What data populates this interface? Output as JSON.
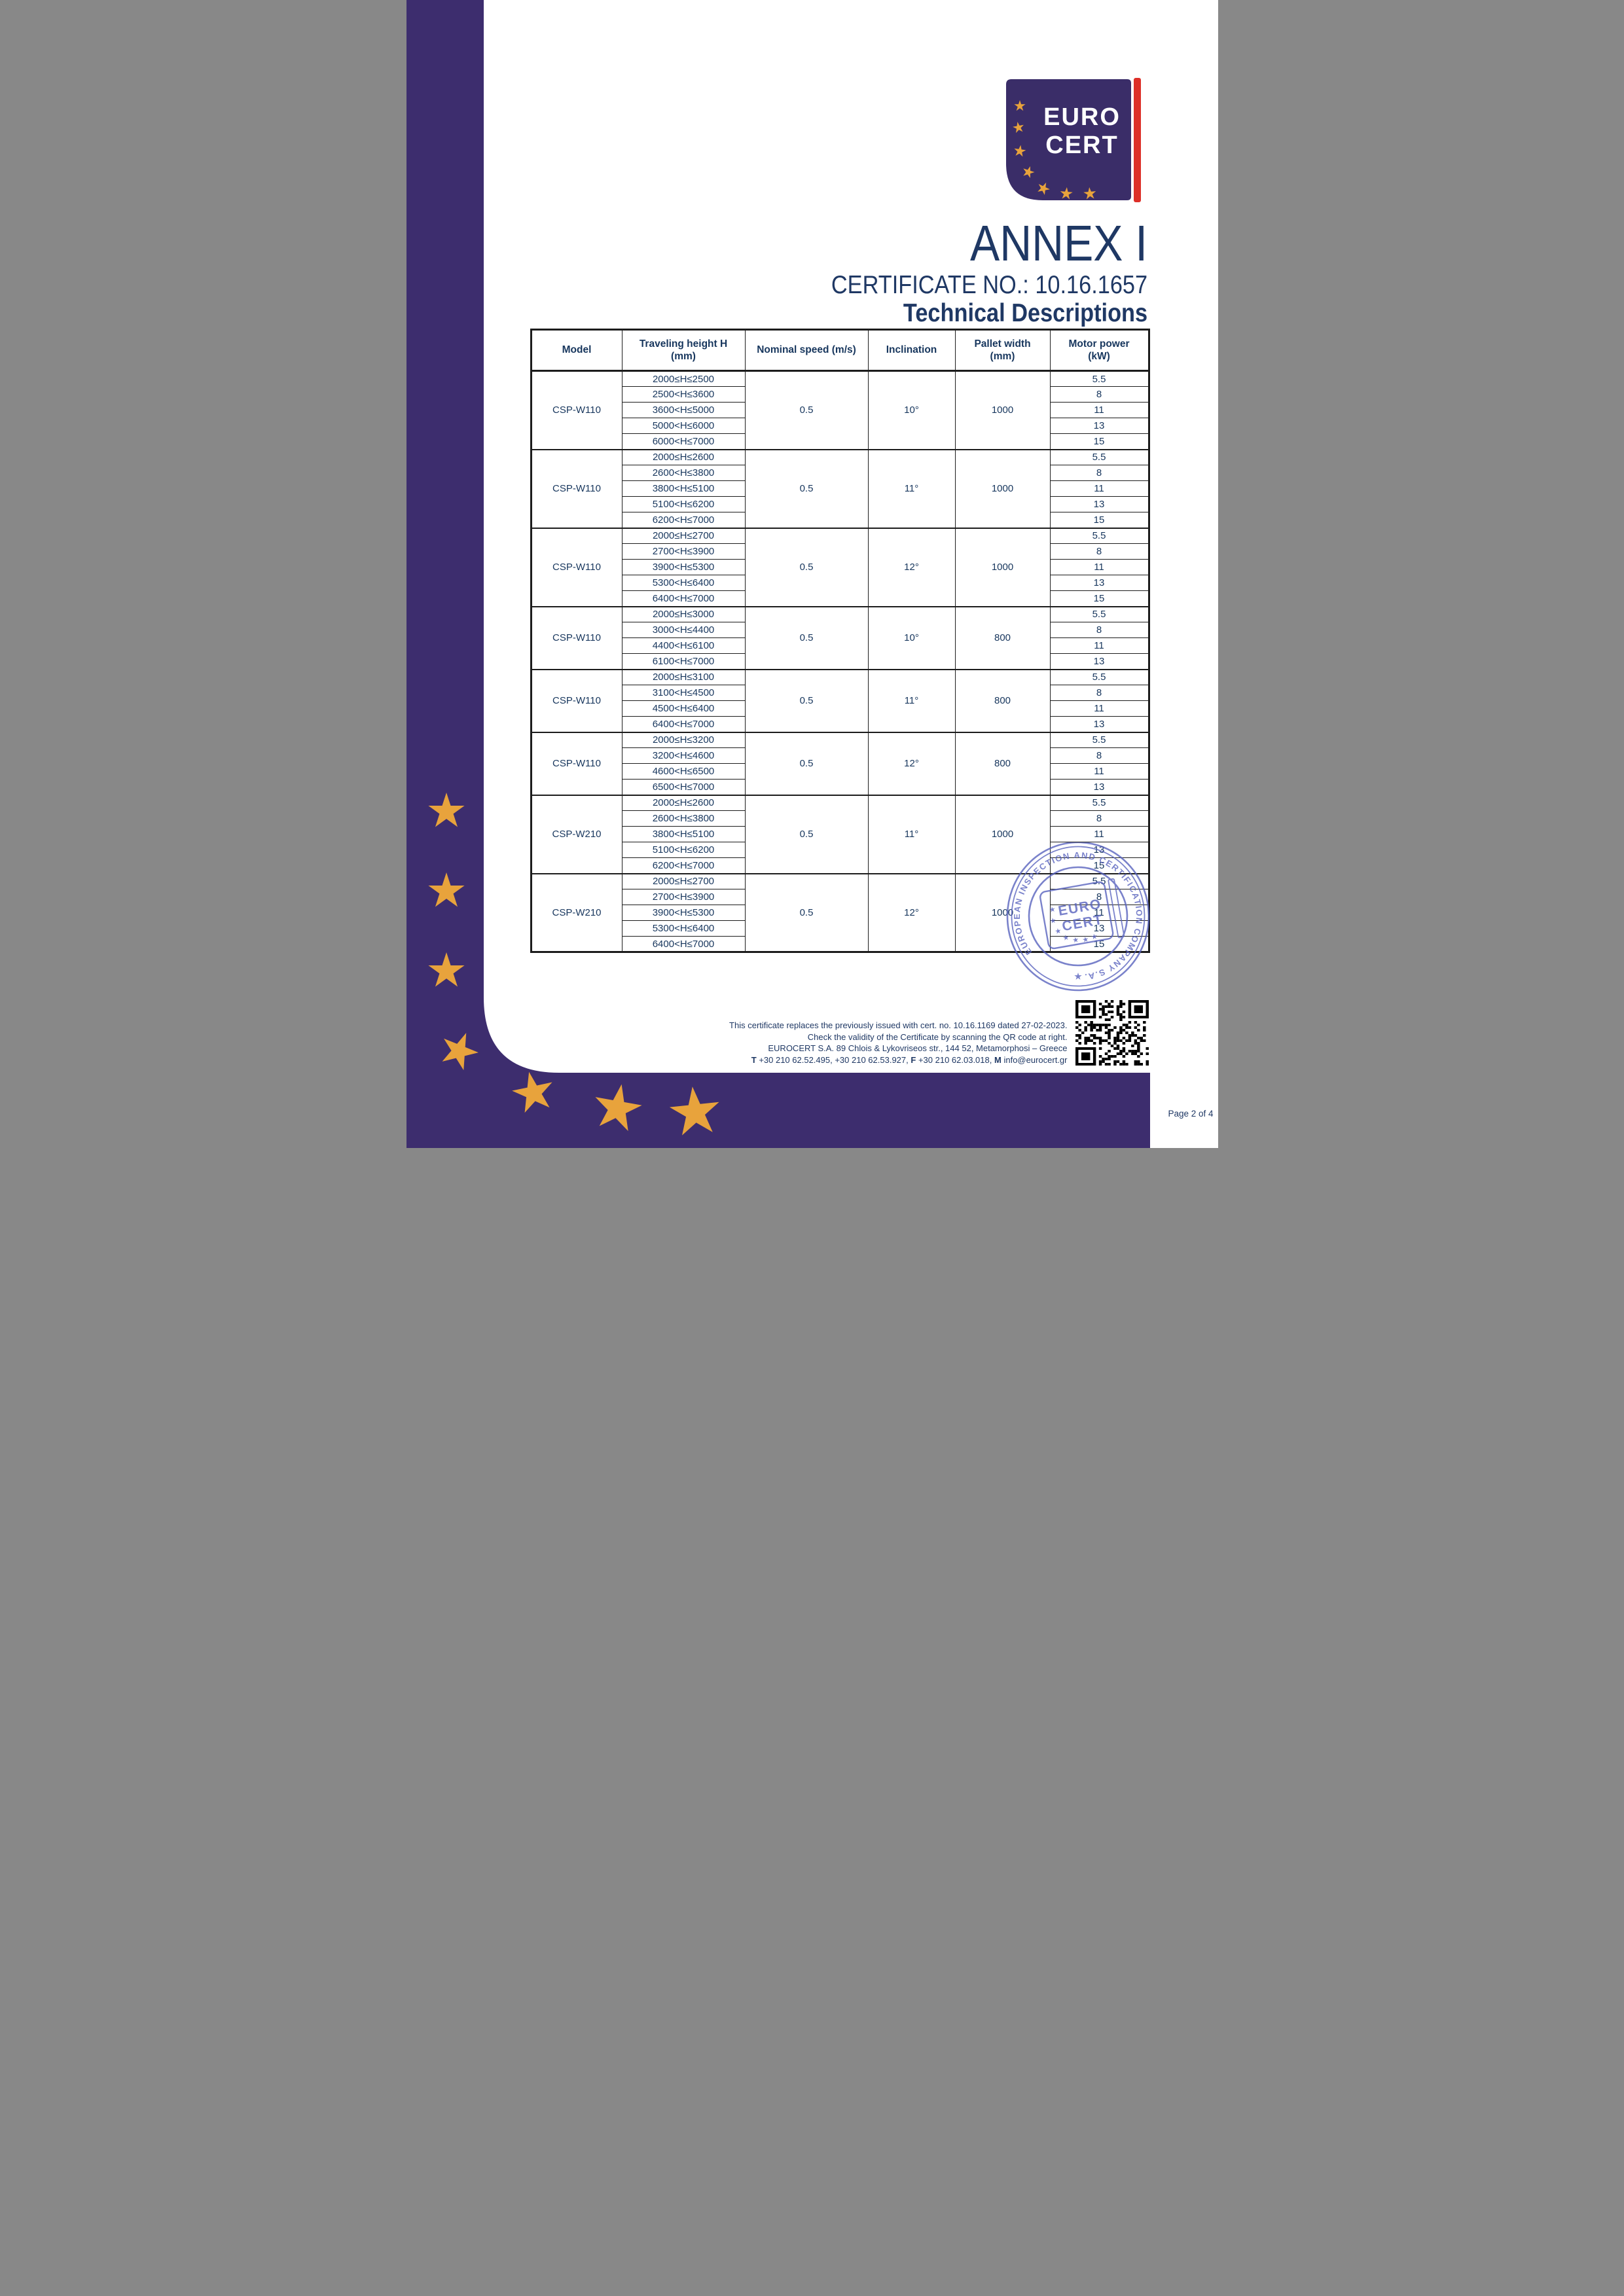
{
  "colors": {
    "purple": "#3d2d6e",
    "logo_purple": "#3a2d68",
    "gold": "#e8a33c",
    "navy": "#1f3864",
    "table_text": "#17365d",
    "stamp_blue": "#5560bd",
    "red": "#dd2f28",
    "border": "#1c1c1c"
  },
  "logo": {
    "word1": "EURO",
    "word2": "CERT"
  },
  "titles": {
    "annex": "ANNEX I",
    "certificate_no": "CERTIFICATE NO.: 10.16.1657",
    "subtitle": "Technical Descriptions"
  },
  "table": {
    "headers": [
      {
        "line1": "Model",
        "line2": ""
      },
      {
        "line1": "Traveling height H",
        "line2": "(mm)"
      },
      {
        "line1": "Nominal speed (m/s)",
        "line2": ""
      },
      {
        "line1": "Inclination",
        "line2": ""
      },
      {
        "line1": "Pallet width",
        "line2": "(mm)"
      },
      {
        "line1": "Motor power",
        "line2": "(kW)"
      }
    ],
    "groups": [
      {
        "model": "CSP-W110",
        "speed": "0.5",
        "inclination": "10°",
        "pallet": "1000",
        "rows": [
          [
            "2000≤H≤2500",
            "5.5"
          ],
          [
            "2500<H≤3600",
            "8"
          ],
          [
            "3600<H≤5000",
            "11"
          ],
          [
            "5000<H≤6000",
            "13"
          ],
          [
            "6000<H≤7000",
            "15"
          ]
        ]
      },
      {
        "model": "CSP-W110",
        "speed": "0.5",
        "inclination": "11°",
        "pallet": "1000",
        "rows": [
          [
            "2000≤H≤2600",
            "5.5"
          ],
          [
            "2600<H≤3800",
            "8"
          ],
          [
            "3800<H≤5100",
            "11"
          ],
          [
            "5100<H≤6200",
            "13"
          ],
          [
            "6200<H≤7000",
            "15"
          ]
        ]
      },
      {
        "model": "CSP-W110",
        "speed": "0.5",
        "inclination": "12°",
        "pallet": "1000",
        "rows": [
          [
            "2000≤H≤2700",
            "5.5"
          ],
          [
            "2700<H≤3900",
            "8"
          ],
          [
            "3900<H≤5300",
            "11"
          ],
          [
            "5300<H≤6400",
            "13"
          ],
          [
            "6400<H≤7000",
            "15"
          ]
        ]
      },
      {
        "model": "CSP-W110",
        "speed": "0.5",
        "inclination": "10°",
        "pallet": "800",
        "rows": [
          [
            "2000≤H≤3000",
            "5.5"
          ],
          [
            "3000<H≤4400",
            "8"
          ],
          [
            "4400<H≤6100",
            "11"
          ],
          [
            "6100<H≤7000",
            "13"
          ]
        ]
      },
      {
        "model": "CSP-W110",
        "speed": "0.5",
        "inclination": "11°",
        "pallet": "800",
        "rows": [
          [
            "2000≤H≤3100",
            "5.5"
          ],
          [
            "3100<H≤4500",
            "8"
          ],
          [
            "4500<H≤6400",
            "11"
          ],
          [
            "6400<H≤7000",
            "13"
          ]
        ]
      },
      {
        "model": "CSP-W110",
        "speed": "0.5",
        "inclination": "12°",
        "pallet": "800",
        "rows": [
          [
            "2000≤H≤3200",
            "5.5"
          ],
          [
            "3200<H≤4600",
            "8"
          ],
          [
            "4600<H≤6500",
            "11"
          ],
          [
            "6500<H≤7000",
            "13"
          ]
        ]
      },
      {
        "model": "CSP-W210",
        "speed": "0.5",
        "inclination": "11°",
        "pallet": "1000",
        "rows": [
          [
            "2000≤H≤2600",
            "5.5"
          ],
          [
            "2600<H≤3800",
            "8"
          ],
          [
            "3800<H≤5100",
            "11"
          ],
          [
            "5100<H≤6200",
            "13"
          ],
          [
            "6200<H≤7000",
            "15"
          ]
        ]
      },
      {
        "model": "CSP-W210",
        "speed": "0.5",
        "inclination": "12°",
        "pallet": "1000",
        "rows": [
          [
            "2000≤H≤2700",
            "5.5"
          ],
          [
            "2700<H≤3900",
            "8"
          ],
          [
            "3900<H≤5300",
            "11"
          ],
          [
            "5300<H≤6400",
            "13"
          ],
          [
            "6400<H≤7000",
            "15"
          ]
        ]
      }
    ]
  },
  "stamp": {
    "ring_text": "EUROPEAN INSPECTION AND CERTIFICATION COMPANY S.A.",
    "word1": "EURO",
    "word2": "CERT"
  },
  "footer": {
    "line1": "This certificate replaces the previously issued with cert. no. 10.16.1169 dated 27-02-2023.",
    "line2": "Check the validity of the Certificate by scanning the QR code at right.",
    "line3": "EUROCERT S.A. 89 Chlois & Lykovriseos str., 144 52, Metamorphosi – Greece",
    "phone_label": "T",
    "phone_text": "+30 210 62.52.495, +30 210 62.53.927,",
    "fax_label": "F",
    "fax_text": "+30 210 62.03.018,",
    "email_label": "M",
    "email_text": "info@eurocert.gr"
  },
  "page": {
    "label": "Page 2 of 4"
  }
}
